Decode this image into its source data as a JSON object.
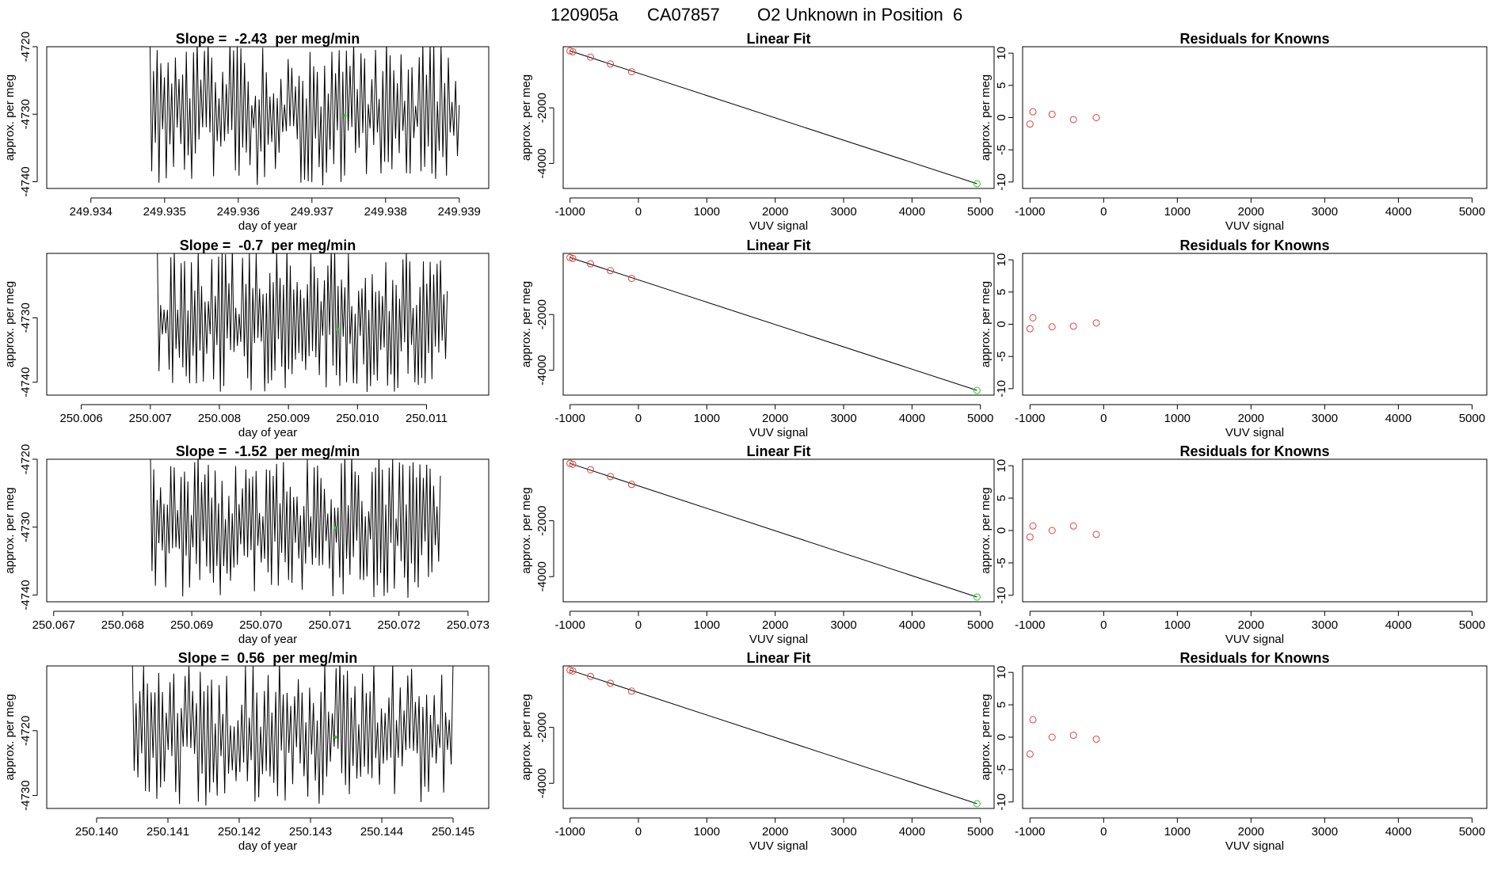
{
  "header": {
    "run_id": "120905a",
    "tank_id": "CA07857",
    "description": "O2 Unknown in Position  6"
  },
  "colors": {
    "trace": "#000000",
    "known_points": "#e0433a",
    "unknown_point": "#22cc22",
    "axis": "#000000",
    "background": "#ffffff"
  },
  "chart_data": [
    {
      "type": "line",
      "row": 1,
      "title_prefix": "Slope = ",
      "slope": "-2.43",
      "title_suffix": " per meg/min",
      "xlabel": "day of year",
      "ylabel": "approx. per meg",
      "xlim": [
        249.9334,
        249.9394
      ],
      "ylim": [
        -4741,
        -4720
      ],
      "xticks": [
        "249.934",
        "249.935",
        "249.936",
        "249.937",
        "249.938",
        "249.939"
      ],
      "yticks": [
        "-4720",
        "-4730",
        "-4740"
      ],
      "trace_start": 249.9348,
      "trace_end": 249.939,
      "trace_low": -4741,
      "trace_high": -4720,
      "mean_point": [
        249.93745,
        -4730.2
      ]
    },
    {
      "type": "scatter",
      "row": 1,
      "title": "Linear Fit",
      "xlabel": "VUV signal",
      "ylabel": "approx. per meg",
      "xlim": [
        -1100,
        5200
      ],
      "ylim": [
        -4900,
        200
      ],
      "xticks": [
        "-1000",
        "0",
        "1000",
        "2000",
        "3000",
        "4000",
        "5000"
      ],
      "yticks": [
        "-2000",
        "-4000"
      ],
      "knowns": [
        [
          -1000,
          50
        ],
        [
          -960,
          20
        ],
        [
          -700,
          -175
        ],
        [
          -410,
          -420
        ],
        [
          -100,
          -700
        ]
      ],
      "unknown": [
        4950,
        -4730
      ],
      "fit_line": [
        [
          -1000,
          50
        ],
        [
          4950,
          -4730
        ]
      ]
    },
    {
      "type": "scatter",
      "row": 1,
      "title": "Residuals for Knowns",
      "xlabel": "VUV signal",
      "ylabel": "approx. per meg",
      "xlim": [
        -1100,
        5200
      ],
      "ylim": [
        -11,
        11
      ],
      "xticks": [
        "-1000",
        "0",
        "1000",
        "2000",
        "3000",
        "4000",
        "5000"
      ],
      "yticks": [
        "10",
        "5",
        "0",
        "-5",
        "-10"
      ],
      "residuals": [
        [
          -1000,
          -1.0
        ],
        [
          -960,
          0.9
        ],
        [
          -700,
          0.5
        ],
        [
          -410,
          -0.3
        ],
        [
          -100,
          0.0
        ]
      ]
    },
    {
      "type": "line",
      "row": 2,
      "title_prefix": "Slope = ",
      "slope": "-0.7",
      "title_suffix": " per meg/min",
      "xlabel": "day of year",
      "ylabel": "approx. per meg",
      "xlim": [
        250.0055,
        250.0119
      ],
      "ylim": [
        -4742,
        -4720
      ],
      "xticks": [
        "250.006",
        "250.007",
        "250.008",
        "250.009",
        "250.010",
        "250.011"
      ],
      "yticks": [
        "-4730",
        "-4740"
      ],
      "trace_start": 250.0071,
      "trace_end": 250.0113,
      "trace_low": -4742,
      "trace_high": -4720,
      "mean_point": [
        250.00972,
        -4731.8
      ]
    },
    {
      "type": "scatter",
      "row": 2,
      "title": "Linear Fit",
      "xlabel": "VUV signal",
      "ylabel": "approx. per meg",
      "xlim": [
        -1100,
        5200
      ],
      "ylim": [
        -4900,
        200
      ],
      "xticks": [
        "-1000",
        "0",
        "1000",
        "2000",
        "3000",
        "4000",
        "5000"
      ],
      "yticks": [
        "-2000",
        "-4000"
      ],
      "knowns": [
        [
          -1000,
          50
        ],
        [
          -960,
          20
        ],
        [
          -700,
          -175
        ],
        [
          -410,
          -420
        ],
        [
          -100,
          -700
        ]
      ],
      "unknown": [
        4950,
        -4730
      ],
      "fit_line": [
        [
          -1000,
          50
        ],
        [
          4950,
          -4730
        ]
      ]
    },
    {
      "type": "scatter",
      "row": 2,
      "title": "Residuals for Knowns",
      "xlabel": "VUV signal",
      "ylabel": "approx. per meg",
      "xlim": [
        -1100,
        5200
      ],
      "ylim": [
        -11,
        11
      ],
      "xticks": [
        "-1000",
        "0",
        "1000",
        "2000",
        "3000",
        "4000",
        "5000"
      ],
      "yticks": [
        "10",
        "5",
        "0",
        "-5",
        "-10"
      ],
      "residuals": [
        [
          -1000,
          -0.7
        ],
        [
          -960,
          1.0
        ],
        [
          -700,
          -0.4
        ],
        [
          -410,
          -0.3
        ],
        [
          -100,
          0.2
        ]
      ]
    },
    {
      "type": "line",
      "row": 3,
      "title_prefix": "Slope = ",
      "slope": "-1.52",
      "title_suffix": " per meg/min",
      "xlabel": "day of year",
      "ylabel": "approx. per meg",
      "xlim": [
        250.0669,
        250.0733
      ],
      "ylim": [
        -4741,
        -4720
      ],
      "xticks": [
        "250.067",
        "250.068",
        "250.069",
        "250.070",
        "250.071",
        "250.072",
        "250.073"
      ],
      "yticks": [
        "-4720",
        "-4730",
        "-4740"
      ],
      "trace_start": 250.0684,
      "trace_end": 250.0726,
      "trace_low": -4741,
      "trace_high": -4720,
      "mean_point": [
        250.07108,
        -4730.1
      ]
    },
    {
      "type": "scatter",
      "row": 3,
      "title": "Linear Fit",
      "xlabel": "VUV signal",
      "ylabel": "approx. per meg",
      "xlim": [
        -1100,
        5200
      ],
      "ylim": [
        -4900,
        200
      ],
      "xticks": [
        "-1000",
        "0",
        "1000",
        "2000",
        "3000",
        "4000",
        "5000"
      ],
      "yticks": [
        "-2000",
        "-4000"
      ],
      "knowns": [
        [
          -1000,
          50
        ],
        [
          -960,
          20
        ],
        [
          -700,
          -175
        ],
        [
          -410,
          -420
        ],
        [
          -100,
          -700
        ]
      ],
      "unknown": [
        4950,
        -4730
      ],
      "fit_line": [
        [
          -1000,
          50
        ],
        [
          4950,
          -4730
        ]
      ]
    },
    {
      "type": "scatter",
      "row": 3,
      "title": "Residuals for Knowns",
      "xlabel": "VUV signal",
      "ylabel": "approx. per meg",
      "xlim": [
        -1100,
        5200
      ],
      "ylim": [
        -11,
        11
      ],
      "xticks": [
        "-1000",
        "0",
        "1000",
        "2000",
        "3000",
        "4000",
        "5000"
      ],
      "yticks": [
        "10",
        "5",
        "0",
        "-5",
        "-10"
      ],
      "residuals": [
        [
          -1000,
          -1.0
        ],
        [
          -960,
          0.7
        ],
        [
          -700,
          0.0
        ],
        [
          -410,
          0.7
        ],
        [
          -100,
          -0.6
        ]
      ]
    },
    {
      "type": "line",
      "row": 4,
      "title_prefix": "Slope = ",
      "slope": "0.56",
      "title_suffix": " per meg/min",
      "xlabel": "day of year",
      "ylabel": "approx. per meg",
      "xlim": [
        250.1393,
        250.1455
      ],
      "ylim": [
        -4732,
        -4710
      ],
      "xticks": [
        "250.140",
        "250.141",
        "250.142",
        "250.143",
        "250.144",
        "250.145"
      ],
      "yticks": [
        "-4720",
        "-4730"
      ],
      "trace_start": 250.1405,
      "trace_end": 250.145,
      "trace_low": -4732,
      "trace_high": -4710,
      "mean_point": [
        250.14335,
        -4721.0
      ]
    },
    {
      "type": "scatter",
      "row": 4,
      "title": "Linear Fit",
      "xlabel": "VUV signal",
      "ylabel": "approx. per meg",
      "xlim": [
        -1100,
        5200
      ],
      "ylim": [
        -4900,
        200
      ],
      "xticks": [
        "-1000",
        "0",
        "1000",
        "2000",
        "3000",
        "4000",
        "5000"
      ],
      "yticks": [
        "-2000",
        "-4000"
      ],
      "knowns": [
        [
          -1000,
          50
        ],
        [
          -960,
          20
        ],
        [
          -700,
          -175
        ],
        [
          -410,
          -420
        ],
        [
          -100,
          -700
        ]
      ],
      "unknown": [
        4950,
        -4730
      ],
      "fit_line": [
        [
          -1000,
          50
        ],
        [
          4950,
          -4730
        ]
      ]
    },
    {
      "type": "scatter",
      "row": 4,
      "title": "Residuals for Knowns",
      "xlabel": "VUV signal",
      "ylabel": "approx. per meg",
      "xlim": [
        -1100,
        5200
      ],
      "ylim": [
        -11,
        11
      ],
      "xticks": [
        "-1000",
        "0",
        "1000",
        "2000",
        "3000",
        "4000",
        "5000"
      ],
      "yticks": [
        "10",
        "5",
        "0",
        "-5",
        "-10"
      ],
      "residuals": [
        [
          -1000,
          -2.6
        ],
        [
          -960,
          2.7
        ],
        [
          -700,
          0.0
        ],
        [
          -410,
          0.3
        ],
        [
          -100,
          -0.3
        ]
      ]
    }
  ]
}
